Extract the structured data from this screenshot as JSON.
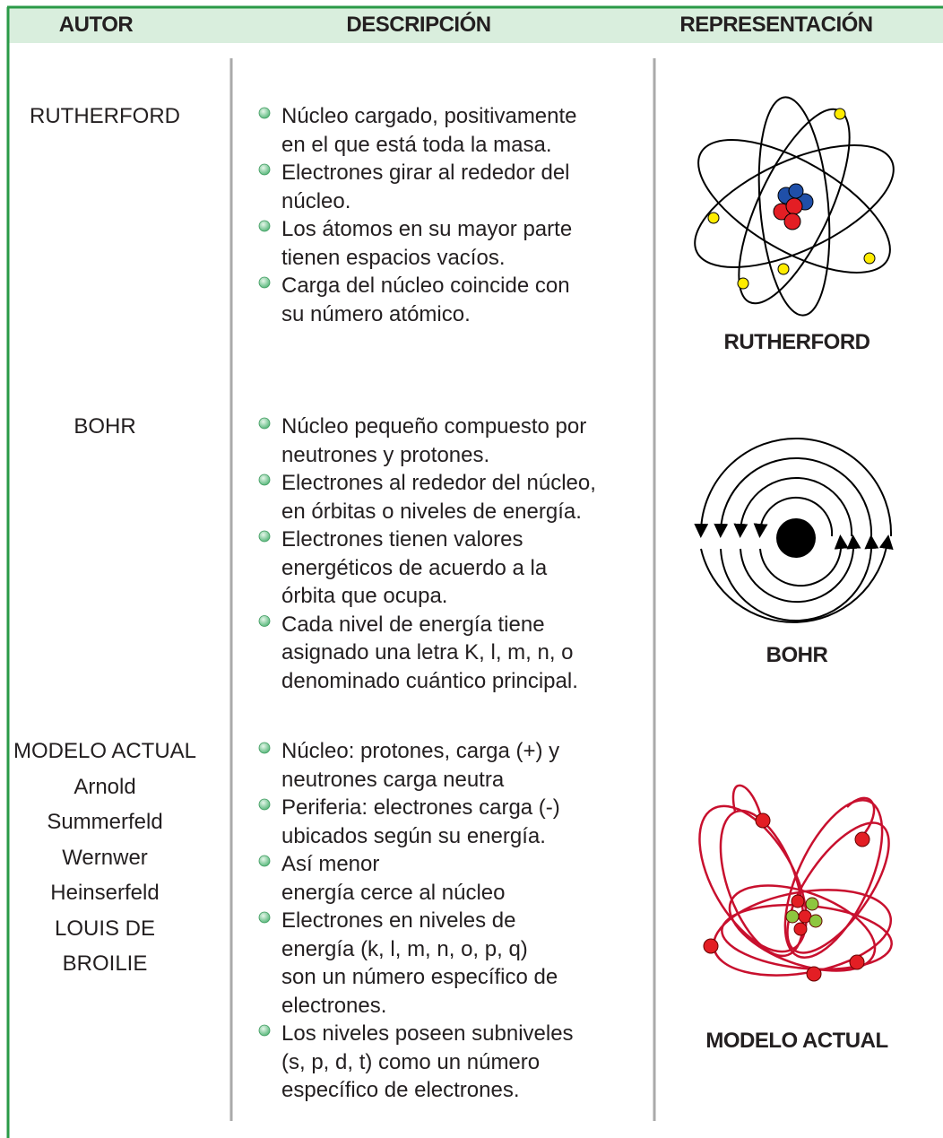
{
  "header": {
    "columns": [
      "AUTOR",
      "DESCRIPCIÓN",
      "REPRESENTACIÓN"
    ]
  },
  "rows": [
    {
      "author": [
        "RUTHERFORD"
      ],
      "bullets": [
        [
          "Núcleo cargado, positivamente",
          "en el que está toda la masa."
        ],
        [
          "Electrones girar al rededor del",
          "núcleo."
        ],
        [
          "Los átomos en su mayor parte",
          "tienen espacios vacíos."
        ],
        [
          "Carga del núcleo coincide con",
          "su número atómico."
        ]
      ],
      "caption": "RUTHERFORD"
    },
    {
      "author": [
        "BOHR"
      ],
      "bullets": [
        [
          "Núcleo pequeño compuesto por",
          "neutrones y protones."
        ],
        [
          "Electrones al rededor del núcleo,",
          "en órbitas o niveles de energía."
        ],
        [
          "Electrones tienen valores",
          "energéticos de acuerdo a la",
          "órbita que ocupa."
        ],
        [
          "Cada nivel de energía tiene",
          "asignado una letra K, l, m, n, o",
          "denominado cuántico principal."
        ]
      ],
      "caption": "BOHR"
    },
    {
      "author": [
        "MODELO ACTUAL",
        "Arnold",
        "Summerfeld",
        "Wernwer",
        "Heinserfeld",
        "LOUIS DE",
        "BROILIE"
      ],
      "bullets": [
        [
          "Núcleo: protones, carga (+) y",
          "neutrones carga neutra"
        ],
        [
          "Periferia: electrones carga (-)",
          "ubicados según su energía."
        ],
        [
          "Así menor",
          "energía cerce al núcleo"
        ],
        [
          "Electrones en niveles de",
          "energía (k, l, m, n, o, p, q)",
          "son un número específico de",
          "electrones."
        ],
        [
          "Los niveles poseen subniveles",
          "(s, p, d, t) como un número",
          "específico de electrones."
        ]
      ],
      "caption": "MODELO ACTUAL"
    }
  ]
}
